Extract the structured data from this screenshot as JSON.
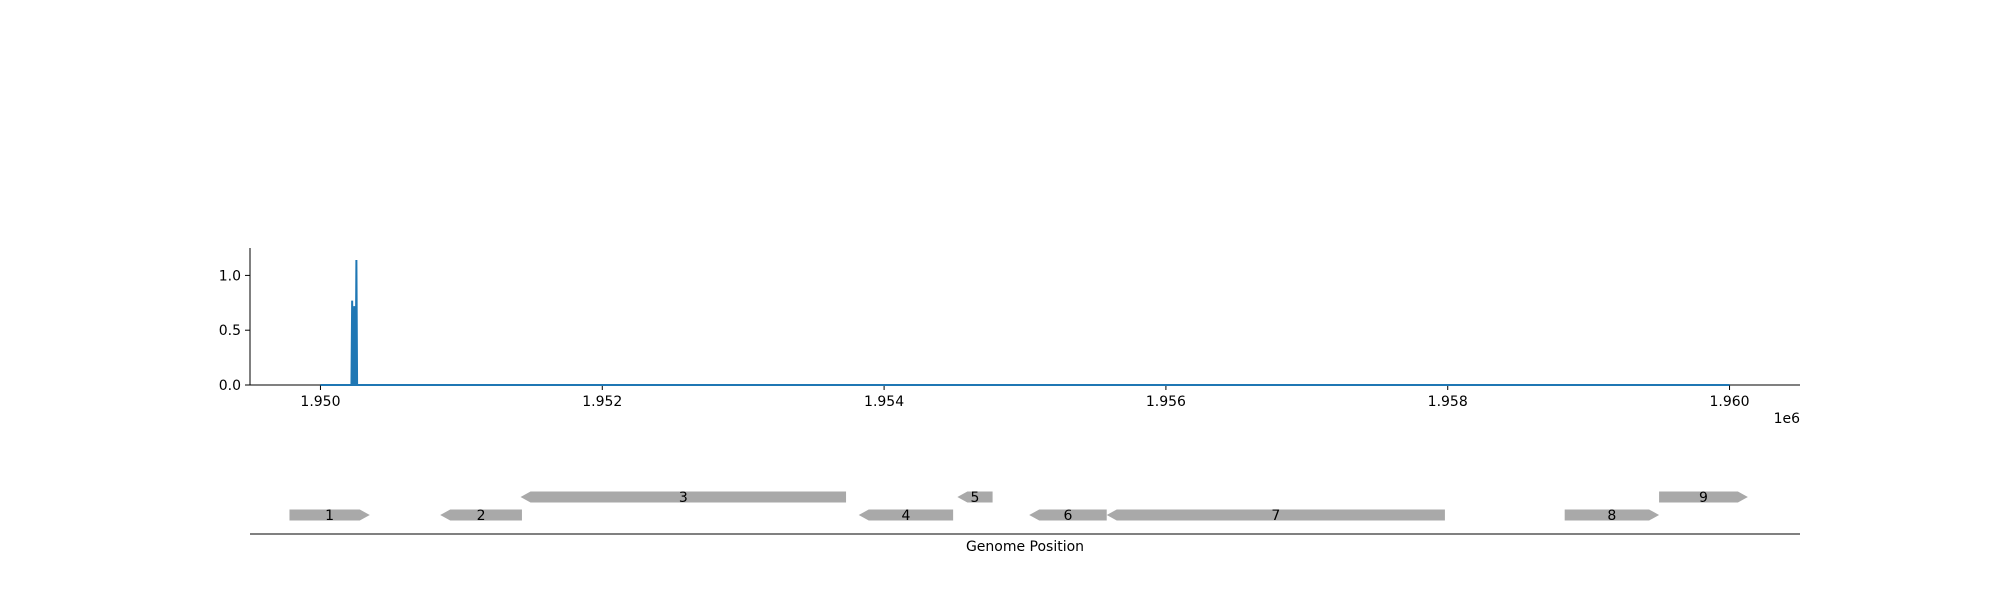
{
  "chart_data": [
    {
      "type": "line",
      "title": "",
      "xlabel": "",
      "ylabel": "",
      "x_offset_label": "1e6",
      "xlim": [
        1949500,
        1960500
      ],
      "ylim": [
        0,
        1.25
      ],
      "x_ticks": [
        1950000,
        1952000,
        1954000,
        1956000,
        1958000,
        1960000
      ],
      "x_tick_labels": [
        "1.950",
        "1.952",
        "1.954",
        "1.956",
        "1.958",
        "1.960"
      ],
      "y_ticks": [
        0.0,
        0.5,
        1.0
      ],
      "y_tick_labels": [
        "0.0",
        "0.5",
        "1.0"
      ],
      "grid": false,
      "series": [
        {
          "color": "#1f77b4",
          "x": [
            1950000,
            1950220,
            1950225,
            1950230,
            1950235,
            1950240,
            1950245,
            1950250,
            1950255,
            1950260,
            1950265,
            1950270,
            1960000
          ],
          "y": [
            0,
            0,
            0.77,
            0,
            0,
            0.72,
            0,
            0,
            1.14,
            0,
            0,
            0,
            0
          ]
        }
      ]
    },
    {
      "type": "gene-track",
      "xlabel": "Genome Position",
      "xlim": [
        1949500,
        1960500
      ],
      "gene_color": "#a9a9a9",
      "genes": [
        {
          "label": "1",
          "start": 1949780,
          "end": 1950350,
          "strand": "+",
          "row": 0
        },
        {
          "label": "2",
          "start": 1950850,
          "end": 1951430,
          "strand": "-",
          "row": 0
        },
        {
          "label": "3",
          "start": 1951420,
          "end": 1953730,
          "strand": "-",
          "row": 1
        },
        {
          "label": "4",
          "start": 1953820,
          "end": 1954490,
          "strand": "-",
          "row": 0
        },
        {
          "label": "5",
          "start": 1954520,
          "end": 1954770,
          "strand": "-",
          "row": 1
        },
        {
          "label": "6",
          "start": 1955030,
          "end": 1955580,
          "strand": "-",
          "row": 0
        },
        {
          "label": "7",
          "start": 1955580,
          "end": 1957980,
          "strand": "-",
          "row": 0
        },
        {
          "label": "8",
          "start": 1958830,
          "end": 1959500,
          "strand": "+",
          "row": 0
        },
        {
          "label": "9",
          "start": 1959500,
          "end": 1960130,
          "strand": "+",
          "row": 1
        }
      ]
    }
  ]
}
